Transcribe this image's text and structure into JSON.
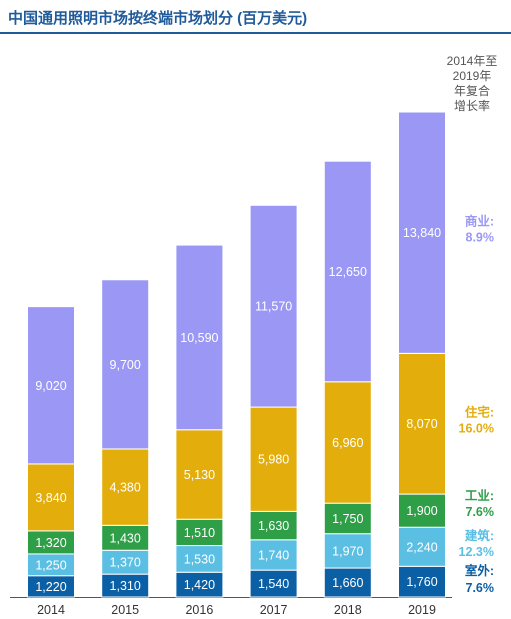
{
  "title": "中国通用照明市场按终端市场划分 (百万美元)",
  "cagr_header_lines": [
    "2014年至",
    "2019年",
    "年复合",
    "增长率"
  ],
  "chart_data": {
    "type": "bar",
    "stacked": true,
    "title": "中国通用照明市场按终端市场划分 (百万美元)",
    "categories": [
      "2014",
      "2015",
      "2016",
      "2017",
      "2018",
      "2019"
    ],
    "series": [
      {
        "name": "室外",
        "cagr": "7.6%",
        "color": "#0b5fa5",
        "values": [
          1220,
          1310,
          1420,
          1540,
          1660,
          1760
        ]
      },
      {
        "name": "建筑",
        "cagr": "12.3%",
        "color": "#5bbfe4",
        "values": [
          1250,
          1370,
          1530,
          1740,
          1970,
          2240
        ]
      },
      {
        "name": "工业",
        "cagr": "7.6%",
        "color": "#2e9e47",
        "values": [
          1320,
          1430,
          1510,
          1630,
          1750,
          1900
        ]
      },
      {
        "name": "住宅",
        "cagr": "16.0%",
        "color": "#e3ad0b",
        "values": [
          3840,
          4380,
          5130,
          5980,
          6960,
          8070
        ]
      },
      {
        "name": "商业",
        "cagr": "8.9%",
        "color": "#9b98f5",
        "values": [
          9020,
          9700,
          10590,
          11570,
          12650,
          13840
        ]
      }
    ],
    "legend_position": "right",
    "grid": false
  }
}
